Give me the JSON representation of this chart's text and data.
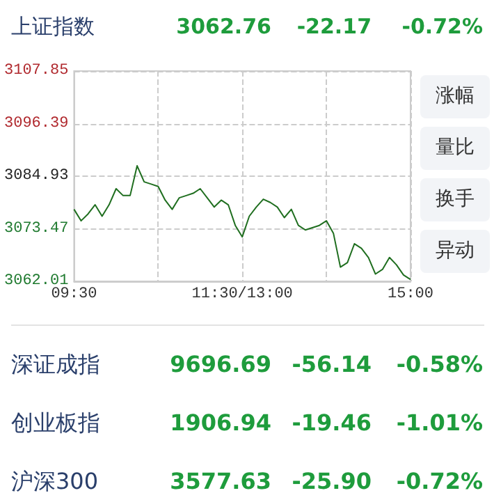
{
  "chart_data": {
    "type": "line",
    "title": "上证指数",
    "annotations": [
      "3062.76",
      "-22.17",
      "-0.72%",
      "涨幅",
      "量比",
      "换手",
      "异动",
      "深证成指",
      "9696.69",
      "-56.14",
      "-0.58%",
      "创业板指",
      "1906.94",
      "-19.46",
      "-1.01%",
      "沪深300",
      "3577.63",
      "-25.90",
      "-0.72%"
    ],
    "categories": [
      "09:30",
      null,
      null,
      null,
      null,
      null,
      null,
      null,
      null,
      null,
      null,
      null,
      null,
      null,
      null,
      null,
      null,
      null,
      null,
      null,
      null,
      null,
      null,
      null,
      "11:30/13:00",
      null,
      null,
      null,
      null,
      null,
      null,
      null,
      null,
      null,
      null,
      null,
      null,
      null,
      null,
      null,
      null,
      null,
      null,
      null,
      null,
      null,
      null,
      null,
      "15:00"
    ],
    "series": [
      {
        "color": "#1f6e1f",
        "values": [
          3077.7,
          3075.2,
          3076.7,
          3078.7,
          3076.2,
          3078.7,
          3082.2,
          3080.7,
          3080.7,
          3087.2,
          3083.7,
          3083.2,
          3082.7,
          3079.7,
          3077.7,
          3080.2,
          3080.7,
          3081.2,
          3082.2,
          3080.2,
          3078.2,
          3079.7,
          3078.7,
          3074.2,
          3071.7,
          3076.2,
          3078.2,
          3079.9,
          3079.2,
          3078.2,
          3075.9,
          3077.7,
          3074.2,
          3073.2,
          3073.7,
          3074.2,
          3075.2,
          3072.5,
          3065.1,
          3066.1,
          3070.2,
          3069.2,
          3067.2,
          3063.6,
          3064.6,
          3067.2,
          3065.6,
          3063.4,
          3062.4
        ]
      }
    ],
    "ylim": [
      3062.01,
      3107.85
    ],
    "yticks": [
      3062.01,
      3073.47,
      3084.93,
      3096.39,
      3107.85
    ],
    "grid": true,
    "line_style": "solid",
    "marker": "none"
  }
}
